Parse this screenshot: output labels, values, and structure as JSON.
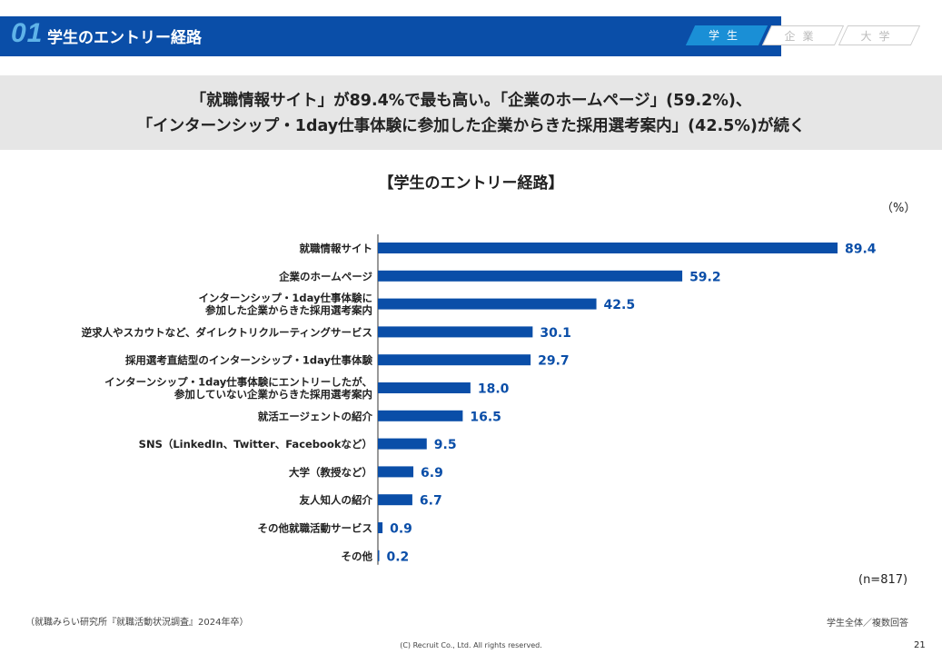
{
  "header": {
    "number": "01",
    "title": "学生のエントリー経路",
    "tabs": [
      {
        "label": "学生",
        "active": true
      },
      {
        "label": "企業",
        "active": false
      },
      {
        "label": "大学",
        "active": false
      }
    ]
  },
  "banner": {
    "line1": "「就職情報サイト」が89.4%で最も高い。「企業のホームページ」(59.2%)、",
    "line2": "「インターンシップ・1day仕事体験に参加した企業からきた採用選考案内」(42.5%)が続く"
  },
  "unit_label": "（%）",
  "n_label": "(n=817)",
  "source": "（就職みらい研究所『就職活動状況調査』2024年卒）",
  "note": "学生全体／複数回答",
  "copyright": "(C) Recruit Co., Ltd. All rights reserved.",
  "page_number": "21",
  "colors": {
    "bar": "#0a4ea8",
    "value_text": "#0a4ea8",
    "header_bg": "#0a4ea8",
    "tab_active": "#1a8fd6"
  },
  "chart_data": {
    "type": "bar",
    "orientation": "horizontal",
    "title": "【学生のエントリー経路】",
    "xlabel": "",
    "ylabel": "",
    "xlim": [
      0,
      100
    ],
    "categories": [
      [
        "就職情報サイト"
      ],
      [
        "企業のホームページ"
      ],
      [
        "インターンシップ・1day仕事体験に",
        "参加した企業からきた採用選考案内"
      ],
      [
        "逆求人やスカウトなど、ダイレクトリクルーティングサービス"
      ],
      [
        "採用選考直結型のインターンシップ・1day仕事体験"
      ],
      [
        "インターンシップ・1day仕事体験にエントリーしたが、",
        "参加していない企業からきた採用選考案内"
      ],
      [
        "就活エージェントの紹介"
      ],
      [
        "SNS（LinkedIn、Twitter、Facebookなど）"
      ],
      [
        "大学（教授など）"
      ],
      [
        "友人知人の紹介"
      ],
      [
        "その他就職活動サービス"
      ],
      [
        "その他"
      ]
    ],
    "values": [
      89.4,
      59.2,
      42.5,
      30.1,
      29.7,
      18.0,
      16.5,
      9.5,
      6.9,
      6.7,
      0.9,
      0.2
    ],
    "value_labels": [
      "89.4",
      "59.2",
      "42.5",
      "30.1",
      "29.7",
      "18.0",
      "16.5",
      "9.5",
      "6.9",
      "6.7",
      "0.9",
      "0.2"
    ]
  }
}
